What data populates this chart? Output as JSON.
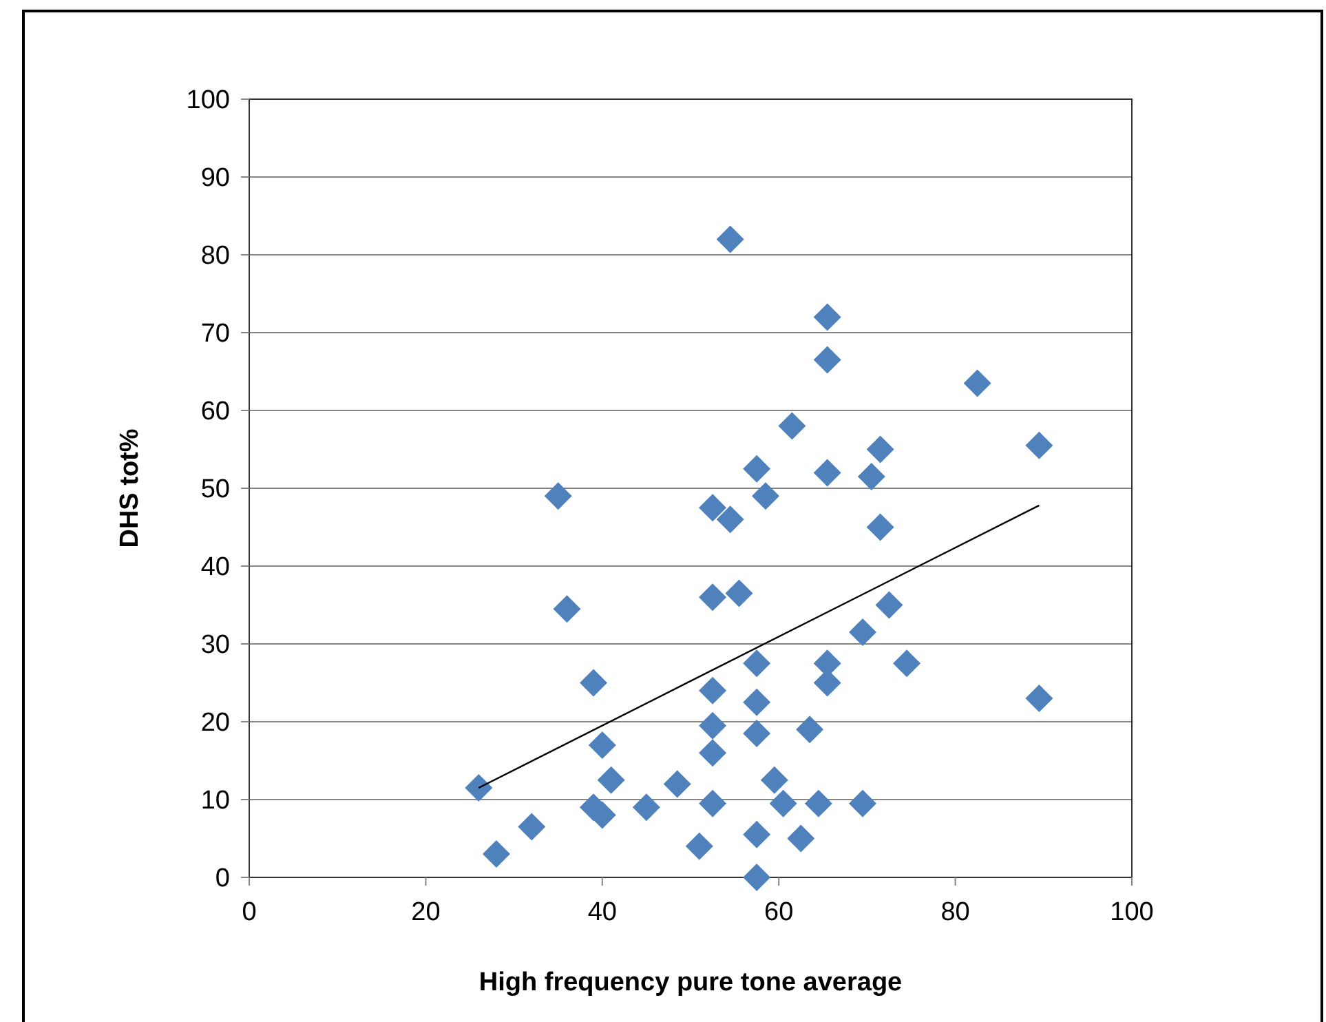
{
  "chart_data": {
    "type": "scatter",
    "xlabel": "High frequency pure tone average",
    "ylabel": "DHS tot%",
    "xlim": [
      0,
      100
    ],
    "xticks": [
      0,
      20,
      40,
      60,
      80,
      100
    ],
    "ylim": [
      0,
      100
    ],
    "yticks": [
      0,
      10,
      20,
      30,
      40,
      50,
      60,
      70,
      80,
      90,
      100
    ],
    "grid": "y",
    "marker": "diamond",
    "series": [
      {
        "color": "#4f81bd",
        "x": [
          26,
          28,
          32,
          35,
          36,
          39,
          39,
          40,
          40,
          41,
          45,
          48.5,
          51,
          52.5,
          52.5,
          52.5,
          52.5,
          52.5,
          52.5,
          54.5,
          54.5,
          55.5,
          57.5,
          57.5,
          57.5,
          57.5,
          57.5,
          57.5,
          58.5,
          59.5,
          60.5,
          61.5,
          62.5,
          63.5,
          64.5,
          65.5,
          65.5,
          65.5,
          65.5,
          65.5,
          69.5,
          69.5,
          70.5,
          71.5,
          71.5,
          72.5,
          74.5,
          82.5,
          89.5,
          89.5
        ],
        "values": [
          11.5,
          3,
          6.5,
          49,
          34.5,
          25,
          9,
          8,
          17,
          12.5,
          9,
          12,
          4,
          9.5,
          24,
          16,
          19.5,
          36,
          47.5,
          46,
          82,
          36.5,
          27.5,
          22.5,
          18.5,
          5.5,
          0,
          52.5,
          49,
          12.5,
          9.5,
          58,
          5,
          19,
          9.5,
          72,
          66.5,
          52,
          27.5,
          25,
          9.5,
          31.5,
          51.5,
          55,
          45,
          35,
          27.5,
          63.5,
          55.5,
          23
        ]
      },
      {
        "type": "line",
        "color": "#000000",
        "marker": "none",
        "x": [
          26,
          89.5
        ],
        "values": [
          11.5,
          47.8
        ]
      }
    ]
  }
}
